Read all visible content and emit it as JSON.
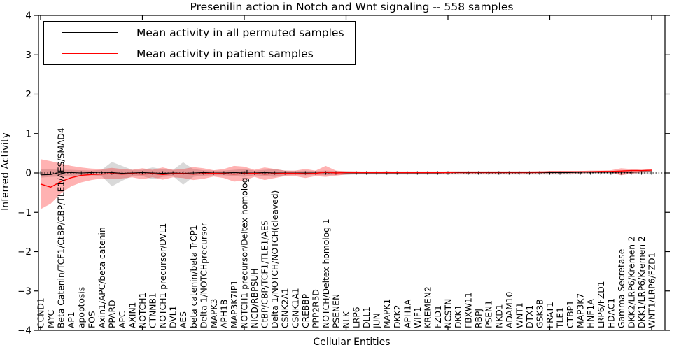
{
  "figure": {
    "background": "#ffffff"
  },
  "legend": {
    "items": [
      {
        "label": "Mean activity in all permuted samples",
        "color": "#000000"
      },
      {
        "label": "Mean activity in patient samples",
        "color": "#ff0000"
      }
    ]
  },
  "chart_data": {
    "type": "line",
    "title": "Presenilin action in Notch and Wnt signaling -- 558 samples",
    "xlabel": "Cellular Entities",
    "ylabel": "Inferred Activity",
    "ylim": [
      -4,
      4
    ],
    "yticks": [
      4,
      3,
      2,
      1,
      0,
      -1,
      -2,
      -3,
      -4
    ],
    "x_major_tick_every": 10,
    "grid": false,
    "legend_position": "upper left",
    "zero_line": "dotted",
    "categories": [
      "CCND1",
      "MYC",
      "Beta Catenin/TCF1/CtBP/CBP/TLE1/AES/SMAD4",
      "AP1",
      "apoptosis",
      "FOS",
      "Axin1/APC/beta catenin",
      "PPARD",
      "APC",
      "AXIN1",
      "NOTCH1",
      "CTNNB1",
      "NOTCH1 precursor/DVL1",
      "DVL1",
      "AES",
      "beta catenin/beta TrCP1",
      "Delta 1/NOTCHprecursor",
      "MAPK3",
      "APH1B",
      "MAP3K7IP1",
      "NOTCH1 precursor/Deltex homolog 1",
      "NICD/RBPSUH",
      "CtBP/CBP/TCF1/TLE1/AES",
      "Delta 1/NOTCH/NOTCH(cleaved)",
      "CSNK2A1",
      "CSNK1A1",
      "CREBBP",
      "PPP2R5D",
      "NOTCH/Deltex homolog 1",
      "PSENEN",
      "NLK",
      "LRP6",
      "DLL1",
      "JUN",
      "MAPK1",
      "DKK2",
      "APH1A",
      "WIF1",
      "KREMEN2",
      "FZD1",
      "NCSTN",
      "DKK1",
      "FBXW11",
      "RBPJ",
      "PSEN1",
      "NKD1",
      "ADAM10",
      "WNT1",
      "DTX1",
      "GSK3B",
      "FRAT1",
      "TLE1",
      "CTBP1",
      "MAP3K7",
      "HNF1A",
      "LRP6/FZD1",
      "HDAC1",
      "Gamma Secretase",
      "DKK2/LRP6/Kremen 2",
      "DKK1/LRP6/Kremen 2",
      "WNT1/LRP6/FZD1"
    ],
    "series": [
      {
        "name": "Mean activity in all permuted samples",
        "color": "#000000",
        "band_color_rgba": "0,0,0,0.15",
        "values": [
          -0.05,
          -0.04,
          0.02,
          0.01,
          0.0,
          0.01,
          0.02,
          0.01,
          -0.01,
          0.0,
          0.01,
          0.0,
          -0.01,
          0.0,
          -0.01,
          0.0,
          0.01,
          0.0,
          0.0,
          0.01,
          0.0,
          0.0,
          0.01,
          0.0,
          0.0,
          0.0,
          0.0,
          0.0,
          0.01,
          0.0,
          0.0,
          0.0,
          0.0,
          0.0,
          0.0,
          0.0,
          0.0,
          0.0,
          0.0,
          0.0,
          0.01,
          0.01,
          0.01,
          0.01,
          0.01,
          0.01,
          0.01,
          0.01,
          0.01,
          0.01,
          0.01,
          0.01,
          0.01,
          0.02,
          0.02,
          0.02,
          0.02,
          0.02,
          0.02,
          0.03,
          0.03
        ],
        "band_upper": [
          0.1,
          0.09,
          0.08,
          0.08,
          0.07,
          0.06,
          0.08,
          0.28,
          0.18,
          0.08,
          0.08,
          0.14,
          0.1,
          0.08,
          0.27,
          0.1,
          0.07,
          0.06,
          0.06,
          0.08,
          0.1,
          0.06,
          0.08,
          0.1,
          0.06,
          0.05,
          0.06,
          0.05,
          0.06,
          0.05,
          0.05,
          0.04,
          0.04,
          0.04,
          0.04,
          0.04,
          0.04,
          0.04,
          0.04,
          0.04,
          0.04,
          0.04,
          0.04,
          0.04,
          0.04,
          0.04,
          0.04,
          0.04,
          0.04,
          0.04,
          0.04,
          0.04,
          0.04,
          0.05,
          0.05,
          0.05,
          0.05,
          0.06,
          0.05,
          0.05,
          0.06
        ],
        "band_lower": [
          -0.12,
          -0.1,
          -0.09,
          -0.08,
          -0.07,
          -0.06,
          -0.08,
          -0.34,
          -0.2,
          -0.08,
          -0.08,
          -0.16,
          -0.1,
          -0.08,
          -0.3,
          -0.1,
          -0.07,
          -0.06,
          -0.06,
          -0.08,
          -0.1,
          -0.06,
          -0.08,
          -0.1,
          -0.06,
          -0.05,
          -0.06,
          -0.05,
          -0.06,
          -0.05,
          -0.05,
          -0.04,
          -0.04,
          -0.04,
          -0.04,
          -0.04,
          -0.04,
          -0.04,
          -0.04,
          -0.04,
          -0.04,
          -0.04,
          -0.04,
          -0.04,
          -0.04,
          -0.04,
          -0.04,
          -0.04,
          -0.04,
          -0.04,
          -0.04,
          -0.04,
          -0.04,
          -0.03,
          -0.03,
          -0.03,
          -0.03,
          -0.04,
          -0.03,
          -0.03,
          -0.04
        ]
      },
      {
        "name": "Mean activity in patient samples",
        "color": "#ff0000",
        "band_color_rgba": "255,0,0,0.30",
        "values": [
          -0.28,
          -0.36,
          -0.22,
          -0.12,
          -0.06,
          -0.04,
          -0.03,
          -0.02,
          -0.03,
          -0.02,
          -0.03,
          -0.02,
          -0.04,
          -0.02,
          -0.02,
          -0.03,
          -0.02,
          -0.01,
          -0.02,
          -0.03,
          -0.02,
          -0.01,
          -0.03,
          -0.02,
          -0.01,
          -0.01,
          -0.02,
          -0.01,
          0.02,
          0.0,
          0.01,
          0.01,
          0.01,
          0.01,
          0.01,
          0.01,
          0.01,
          0.01,
          0.01,
          0.01,
          0.01,
          0.02,
          0.02,
          0.02,
          0.02,
          0.02,
          0.02,
          0.02,
          0.02,
          0.02,
          0.03,
          0.03,
          0.03,
          0.03,
          0.03,
          0.04,
          0.04,
          0.05,
          0.06,
          0.06,
          0.07
        ],
        "band_upper": [
          0.35,
          0.3,
          0.24,
          0.18,
          0.14,
          0.11,
          0.1,
          0.13,
          0.1,
          0.08,
          0.12,
          0.08,
          0.14,
          0.08,
          0.1,
          0.15,
          0.12,
          0.07,
          0.1,
          0.18,
          0.16,
          0.08,
          0.14,
          0.1,
          0.06,
          0.06,
          0.1,
          0.06,
          0.18,
          0.06,
          0.04,
          0.04,
          0.03,
          0.03,
          0.04,
          0.03,
          0.03,
          0.03,
          0.03,
          0.03,
          0.04,
          0.04,
          0.04,
          0.04,
          0.04,
          0.04,
          0.04,
          0.04,
          0.04,
          0.05,
          0.05,
          0.05,
          0.05,
          0.05,
          0.06,
          0.06,
          0.07,
          0.12,
          0.1,
          0.08,
          0.1
        ],
        "band_lower": [
          -0.92,
          -0.78,
          -0.52,
          -0.34,
          -0.24,
          -0.18,
          -0.14,
          -0.16,
          -0.14,
          -0.11,
          -0.16,
          -0.11,
          -0.17,
          -0.11,
          -0.13,
          -0.18,
          -0.15,
          -0.09,
          -0.13,
          -0.22,
          -0.19,
          -0.1,
          -0.18,
          -0.13,
          -0.08,
          -0.08,
          -0.13,
          -0.08,
          -0.1,
          -0.07,
          -0.04,
          -0.03,
          -0.02,
          -0.02,
          -0.03,
          -0.02,
          -0.02,
          -0.02,
          -0.02,
          -0.02,
          -0.02,
          -0.02,
          -0.02,
          -0.02,
          -0.02,
          -0.02,
          -0.02,
          -0.02,
          -0.02,
          -0.01,
          -0.01,
          -0.01,
          -0.01,
          -0.01,
          0.0,
          0.0,
          0.01,
          -0.06,
          -0.02,
          0.01,
          0.02
        ]
      }
    ]
  }
}
